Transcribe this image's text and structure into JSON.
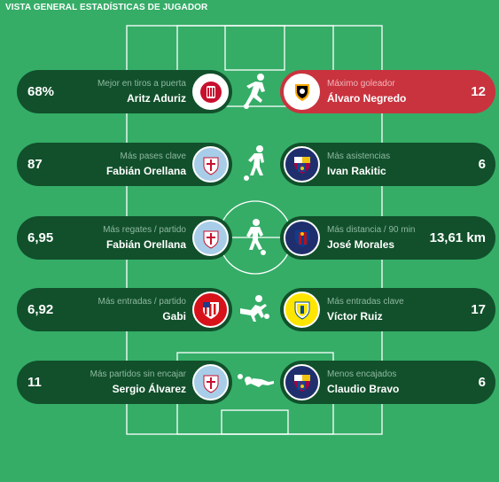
{
  "title": "VISTA GENERAL ESTADÍSTICAS DE JUGADOR",
  "colors": {
    "pitch": "#35ad67",
    "pill": "#11502b",
    "highlight": "#c9333e",
    "pitch_lines": "#ffffff"
  },
  "stats": [
    {
      "left": {
        "category": "Mejor en tiros a puerta",
        "player": "Aritz Aduriz",
        "value": "68%",
        "club_icon": "athletic-bilbao-crest-icon"
      },
      "right": {
        "category": "Máximo goleador",
        "player": "Álvaro Negredo",
        "value": "12",
        "club_icon": "valencia-crest-icon",
        "highlighted": true
      },
      "icon": "shooting-player-icon"
    },
    {
      "left": {
        "category": "Más pases clave",
        "player": "Fabián Orellana",
        "value": "87",
        "club_icon": "celta-vigo-crest-icon"
      },
      "right": {
        "category": "Más asistencias",
        "player": "Ivan Rakitic",
        "value": "6",
        "club_icon": "barcelona-crest-icon"
      },
      "icon": "passing-player-icon"
    },
    {
      "left": {
        "category": "Más regates / partido",
        "player": "Fabián Orellana",
        "value": "6,95",
        "club_icon": "celta-vigo-crest-icon"
      },
      "right": {
        "category": "Más distancia / 90 min",
        "player": "José Morales",
        "value": "13,61 km",
        "club_icon": "levante-crest-icon"
      },
      "icon": "dribbling-player-icon"
    },
    {
      "left": {
        "category": "Más entradas / partido",
        "player": "Gabi",
        "value": "6,92",
        "club_icon": "atletico-madrid-crest-icon"
      },
      "right": {
        "category": "Más entradas clave",
        "player": "Víctor Ruiz",
        "value": "17",
        "club_icon": "villarreal-crest-icon"
      },
      "icon": "tackling-player-icon"
    },
    {
      "left": {
        "category": "Más partidos sin encajar",
        "player": "Sergio Álvarez",
        "value": "11",
        "club_icon": "celta-vigo-crest-icon"
      },
      "right": {
        "category": "Menos encajados",
        "player": "Claudio Bravo",
        "value": "6",
        "club_icon": "barcelona-crest-icon"
      },
      "icon": "goalkeeper-diving-icon"
    }
  ]
}
